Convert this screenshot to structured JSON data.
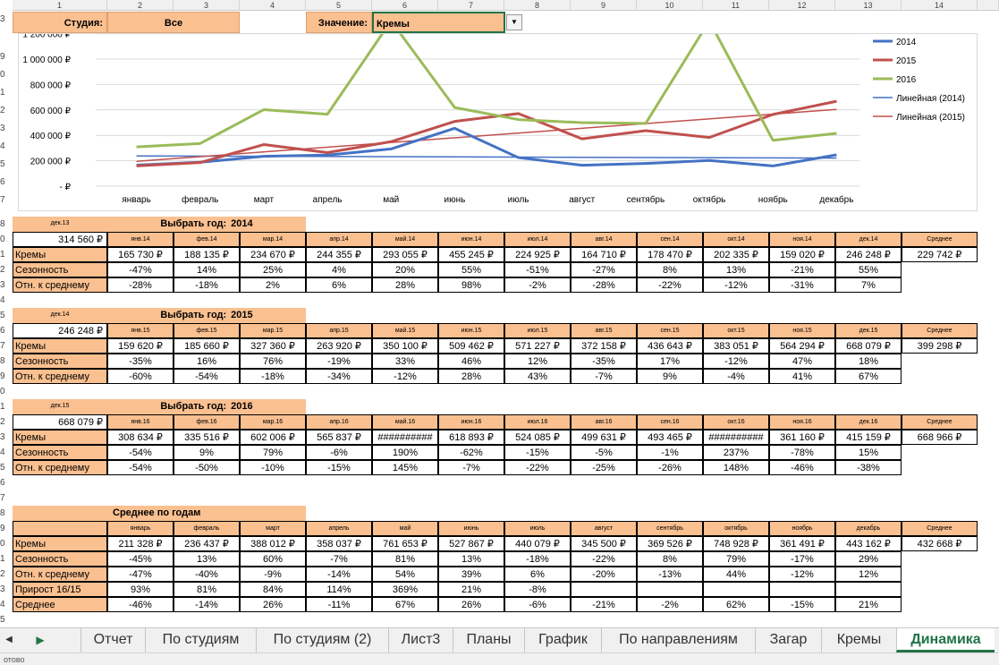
{
  "columns": [
    "1",
    "2",
    "3",
    "4",
    "5",
    "6",
    "7",
    "8",
    "9",
    "10",
    "11",
    "12",
    "13",
    "14"
  ],
  "filters": {
    "studio_label": "Студия:",
    "studio_value": "Все",
    "value_label": "Значение:",
    "value_value": "Кремы"
  },
  "chart_data": {
    "type": "line",
    "categories": [
      "январь",
      "февраль",
      "март",
      "апрель",
      "май",
      "июнь",
      "июль",
      "август",
      "сентябрь",
      "октябрь",
      "ноябрь",
      "декабрь"
    ],
    "y_ticks": [
      "1 200 000 ₽",
      "1 000 000 ₽",
      "800 000 ₽",
      "600 000 ₽",
      "400 000 ₽",
      "200 000 ₽",
      "- ₽"
    ],
    "ylim": [
      0,
      1200000
    ],
    "series": [
      {
        "name": "2014",
        "color": "#4472c4",
        "values": [
          165730,
          188135,
          234670,
          244355,
          293055,
          455245,
          224925,
          164710,
          178470,
          202335,
          159020,
          246248
        ]
      },
      {
        "name": "2015",
        "color": "#c0504d",
        "values": [
          159620,
          185660,
          327360,
          263920,
          350100,
          509462,
          571227,
          372158,
          436643,
          383051,
          564294,
          668079
        ]
      },
      {
        "name": "2016",
        "color": "#9bbb59",
        "values": [
          308634,
          335516,
          602006,
          565837,
          1300000,
          618893,
          524085,
          499631,
          493465,
          1300000,
          361160,
          415159
        ]
      }
    ],
    "trends": [
      {
        "name": "Линейная (2014)",
        "color": "#4472c4",
        "from": 238000,
        "to": 221000
      },
      {
        "name": "Линейная (2015)",
        "color": "#c0504d",
        "from": 195000,
        "to": 604000
      }
    ],
    "legend": [
      "2014",
      "2015",
      "2016",
      "Линейная (2014)",
      "Линейная (2015)"
    ]
  },
  "blocks": [
    {
      "date_label": "дек.13",
      "select_label": "Выбрать год:",
      "year": "2014",
      "prev_value": "314 560 ₽",
      "months": [
        "янв.14",
        "фев.14",
        "мар.14",
        "апр.14",
        "май.14",
        "июн.14",
        "июл.14",
        "авг.14",
        "сен.14",
        "окт.14",
        "ноя.14",
        "дек.14"
      ],
      "avg_label": "Среднее",
      "r1_label": "Кремы",
      "r1": [
        "165 730 ₽",
        "188 135 ₽",
        "234 670 ₽",
        "244 355 ₽",
        "293 055 ₽",
        "455 245 ₽",
        "224 925 ₽",
        "164 710 ₽",
        "178 470 ₽",
        "202 335 ₽",
        "159 020 ₽",
        "246 248 ₽"
      ],
      "r1_avg": "229 742 ₽",
      "r2_label": "Сезонность",
      "r2": [
        "-47%",
        "14%",
        "25%",
        "4%",
        "20%",
        "55%",
        "-51%",
        "-27%",
        "8%",
        "13%",
        "-21%",
        "55%"
      ],
      "r3_label": "Отн. к среднему",
      "r3": [
        "-28%",
        "-18%",
        "2%",
        "6%",
        "28%",
        "98%",
        "-2%",
        "-28%",
        "-22%",
        "-12%",
        "-31%",
        "7%"
      ]
    },
    {
      "date_label": "дек.14",
      "select_label": "Выбрать год:",
      "year": "2015",
      "prev_value": "246 248 ₽",
      "months": [
        "янв.15",
        "фев.15",
        "мар.15",
        "апр.15",
        "май.15",
        "июн.15",
        "июл.15",
        "авг.15",
        "сен.15",
        "окт.15",
        "ноя.15",
        "дек.15"
      ],
      "avg_label": "Среднее",
      "r1_label": "Кремы",
      "r1": [
        "159 620 ₽",
        "185 660 ₽",
        "327 360 ₽",
        "263 920 ₽",
        "350 100 ₽",
        "509 462 ₽",
        "571 227 ₽",
        "372 158 ₽",
        "436 643 ₽",
        "383 051 ₽",
        "564 294 ₽",
        "668 079 ₽"
      ],
      "r1_avg": "399 298 ₽",
      "r2_label": "Сезонность",
      "r2": [
        "-35%",
        "16%",
        "76%",
        "-19%",
        "33%",
        "46%",
        "12%",
        "-35%",
        "17%",
        "-12%",
        "47%",
        "18%"
      ],
      "r3_label": "Отн. к среднему",
      "r3": [
        "-60%",
        "-54%",
        "-18%",
        "-34%",
        "-12%",
        "28%",
        "43%",
        "-7%",
        "9%",
        "-4%",
        "41%",
        "67%"
      ]
    },
    {
      "date_label": "дек.15",
      "select_label": "Выбрать год:",
      "year": "2016",
      "prev_value": "668 079 ₽",
      "months": [
        "янв.16",
        "фев.16",
        "мар.16",
        "апр.16",
        "май.16",
        "июн.16",
        "июл.16",
        "авг.16",
        "сен.16",
        "окт.16",
        "ноя.16",
        "дек.16"
      ],
      "avg_label": "Среднее",
      "r1_label": "Кремы",
      "r1": [
        "308 634 ₽",
        "335 516 ₽",
        "602 006 ₽",
        "565 837 ₽",
        "##########",
        "618 893 ₽",
        "524 085 ₽",
        "499 631 ₽",
        "493 465 ₽",
        "##########",
        "361 160 ₽",
        "415 159 ₽"
      ],
      "r1_avg": "668 966 ₽",
      "r2_label": "Сезонность",
      "r2": [
        "-54%",
        "9%",
        "79%",
        "-6%",
        "190%",
        "-62%",
        "-15%",
        "-5%",
        "-1%",
        "237%",
        "-78%",
        "15%"
      ],
      "r3_label": "Отн. к среднему",
      "r3": [
        "-54%",
        "-50%",
        "-10%",
        "-15%",
        "145%",
        "-7%",
        "-22%",
        "-25%",
        "-26%",
        "148%",
        "-46%",
        "-38%"
      ]
    }
  ],
  "avg_block": {
    "title": "Среднее по годам",
    "months": [
      "январь",
      "февраль",
      "март",
      "апрель",
      "май",
      "июнь",
      "июль",
      "август",
      "сентябрь",
      "октябрь",
      "ноябрь",
      "декабрь"
    ],
    "avg_label": "Среднее",
    "r1_label": "Кремы",
    "r1": [
      "211 328 ₽",
      "236 437 ₽",
      "388 012 ₽",
      "358 037 ₽",
      "761 653 ₽",
      "527 867 ₽",
      "440 079 ₽",
      "345 500 ₽",
      "369 526 ₽",
      "748 928 ₽",
      "361 491 ₽",
      "443 162 ₽"
    ],
    "r1_avg": "432 668 ₽",
    "r2_label": "Сезонность",
    "r2": [
      "-45%",
      "13%",
      "60%",
      "-7%",
      "81%",
      "13%",
      "-18%",
      "-22%",
      "8%",
      "79%",
      "-17%",
      "29%"
    ],
    "r3_label": "Отн. к среднему",
    "r3": [
      "-47%",
      "-40%",
      "-9%",
      "-14%",
      "54%",
      "39%",
      "6%",
      "-20%",
      "-13%",
      "44%",
      "-12%",
      "12%"
    ],
    "r4_label": "Прирост 16/15",
    "r4": [
      "93%",
      "81%",
      "84%",
      "114%",
      "369%",
      "21%",
      "-8%",
      "",
      "",
      "",
      "",
      ""
    ],
    "r5_label": "Среднее",
    "r5": [
      "-46%",
      "-14%",
      "26%",
      "-11%",
      "67%",
      "26%",
      "-6%",
      "-21%",
      "-2%",
      "62%",
      "-15%",
      "21%"
    ]
  },
  "row_numbers": [
    "3",
    "9",
    "0",
    "1",
    "2",
    "3",
    "4",
    "5",
    "6",
    "7",
    "8",
    "0",
    "1",
    "2",
    "3",
    "4",
    "5",
    "6",
    "7",
    "8",
    "9",
    "0",
    "1",
    "2",
    "3",
    "4",
    "5",
    "6",
    "7",
    "8",
    "9",
    "0",
    "1",
    "2",
    "3",
    "4",
    "5"
  ],
  "tabs": [
    "Отчет",
    "По студиям",
    "По студиям (2)",
    "Лист3",
    "Планы",
    "График",
    "По направлениям",
    "Загар",
    "Кремы",
    "Динамика"
  ],
  "active_tab": "Динамика",
  "status_text": "отово"
}
